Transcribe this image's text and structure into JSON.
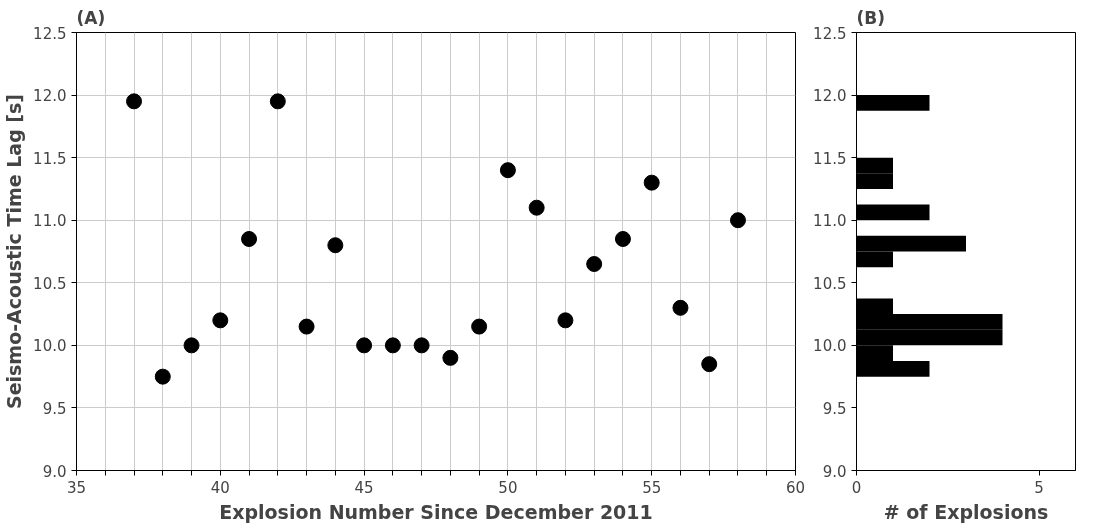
{
  "chart_data": [
    {
      "type": "scatter",
      "title": "(A)",
      "xlabel": "Explosion Number Since December 2011",
      "ylabel": "Seismo-Acoustic Time Lag [s]",
      "x": [
        37,
        38,
        39,
        40,
        41,
        42,
        43,
        44,
        45,
        46,
        47,
        48,
        49,
        50,
        51,
        52,
        53,
        54,
        55,
        56,
        57,
        58
      ],
      "values": [
        11.95,
        9.75,
        10.0,
        10.2,
        10.85,
        11.95,
        10.15,
        10.8,
        10.0,
        10.0,
        10.0,
        9.9,
        10.15,
        11.4,
        11.1,
        10.2,
        10.65,
        10.85,
        11.3,
        10.3,
        9.85,
        11.0
      ],
      "color": "#000000",
      "marker": "circle",
      "xlim": [
        35,
        60
      ],
      "xticks": [
        35,
        {
          "value": 36,
          "label": null
        },
        {
          "value": 37,
          "label": null
        },
        {
          "value": 38,
          "label": null
        },
        {
          "value": 39,
          "label": null
        },
        40,
        {
          "value": 41,
          "label": null
        },
        {
          "value": 42,
          "label": null
        },
        {
          "value": 43,
          "label": null
        },
        {
          "value": 44,
          "label": null
        },
        45,
        {
          "value": 46,
          "label": null
        },
        {
          "value": 47,
          "label": null
        },
        {
          "value": 48,
          "label": null
        },
        {
          "value": 49,
          "label": null
        },
        50,
        {
          "value": 51,
          "label": null
        },
        {
          "value": 52,
          "label": null
        },
        {
          "value": 53,
          "label": null
        },
        {
          "value": 54,
          "label": null
        },
        55,
        {
          "value": 56,
          "label": null
        },
        {
          "value": 57,
          "label": null
        },
        {
          "value": 58,
          "label": null
        },
        {
          "value": 59,
          "label": null
        },
        60
      ],
      "ylim": [
        9.0,
        12.5
      ],
      "yticks": [
        {
          "value": 9.0,
          "label": "9.0"
        },
        9.5,
        {
          "value": 10.0,
          "label": "10.0"
        },
        10.5,
        {
          "value": 11.0,
          "label": "11.0"
        },
        11.5,
        {
          "value": 12.0,
          "label": "12.0"
        },
        12.5
      ],
      "grid": true
    },
    {
      "type": "histogram",
      "title": "(B)",
      "xlabel": "# of Explosions",
      "orientation": "horizontal",
      "color": "#000000",
      "bins": [
        9.75,
        9.875,
        10.0,
        10.125,
        10.25,
        10.375,
        10.5,
        10.625,
        10.75,
        10.875,
        11.0,
        11.125,
        11.25,
        11.375,
        11.5,
        11.625,
        11.75,
        11.875,
        12.0
      ],
      "values": [
        2,
        1,
        4,
        4,
        1,
        0,
        0,
        1,
        3,
        0,
        2,
        0,
        1,
        1,
        0,
        0,
        0,
        2
      ],
      "xlim": [
        0,
        6
      ],
      "xticks": [
        0,
        5
      ],
      "ylim": [
        9.0,
        12.5
      ],
      "yticks": [
        {
          "value": 9.0,
          "label": "9.0"
        },
        9.5,
        {
          "value": 10.0,
          "label": "10.0"
        },
        10.5,
        {
          "value": 11.0,
          "label": "11.0"
        },
        11.5,
        {
          "value": 12.0,
          "label": "12.0"
        },
        12.5
      ],
      "grid": false
    }
  ]
}
